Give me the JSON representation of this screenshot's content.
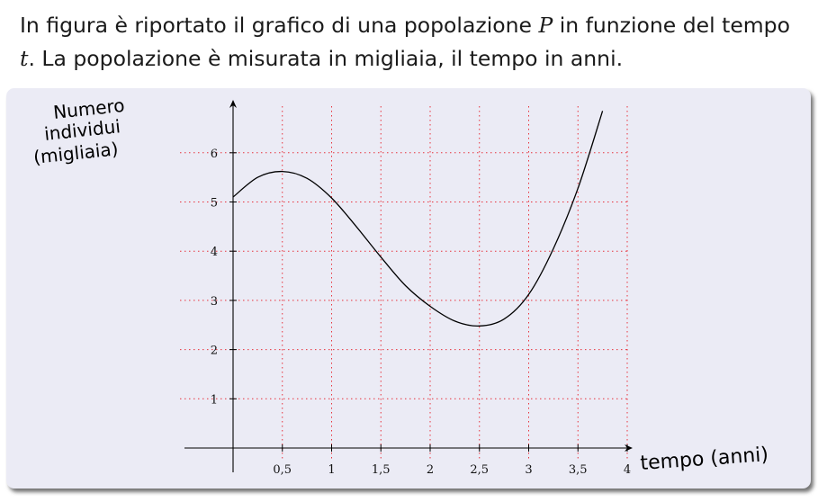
{
  "intro": {
    "part1": "In figura è riportato il grafico di una popolazione ",
    "var_P": "P",
    "part2": " in funzione del tempo",
    "var_t": "t",
    "part3": ". La popolazione è misurata in migliaia, il tempo in anni."
  },
  "chart_data": {
    "type": "line",
    "title": "",
    "ylabel_lines": [
      "Numero",
      "individui",
      "(migliaia)"
    ],
    "xlabel": "tempo (anni)",
    "xlim": [
      0,
      4
    ],
    "ylim": [
      0,
      6.5
    ],
    "x_ticks": [
      {
        "value": 0.5,
        "label": "0,5"
      },
      {
        "value": 1,
        "label": "1"
      },
      {
        "value": 1.5,
        "label": "1,5"
      },
      {
        "value": 2,
        "label": "2"
      },
      {
        "value": 2.5,
        "label": "2,5"
      },
      {
        "value": 3,
        "label": "3"
      },
      {
        "value": 3.5,
        "label": "3,5"
      },
      {
        "value": 4,
        "label": "4"
      }
    ],
    "y_ticks": [
      {
        "value": 1,
        "label": "1"
      },
      {
        "value": 2,
        "label": "2"
      },
      {
        "value": 3,
        "label": "3"
      },
      {
        "value": 4,
        "label": "4"
      },
      {
        "value": 5,
        "label": "5"
      },
      {
        "value": 6,
        "label": "6"
      }
    ],
    "grid": true,
    "grid_color": "#e8333d",
    "series": [
      {
        "line_color": "#000000",
        "x": [
          0,
          0.25,
          0.5,
          0.75,
          1,
          1.25,
          1.5,
          1.75,
          2,
          2.25,
          2.5,
          2.75,
          3,
          3.25,
          3.5,
          3.75
        ],
        "y": [
          5.1,
          5.5,
          5.62,
          5.48,
          5.08,
          4.5,
          3.88,
          3.3,
          2.88,
          2.58,
          2.48,
          2.62,
          3.12,
          4.05,
          5.28,
          6.85
        ]
      }
    ]
  }
}
